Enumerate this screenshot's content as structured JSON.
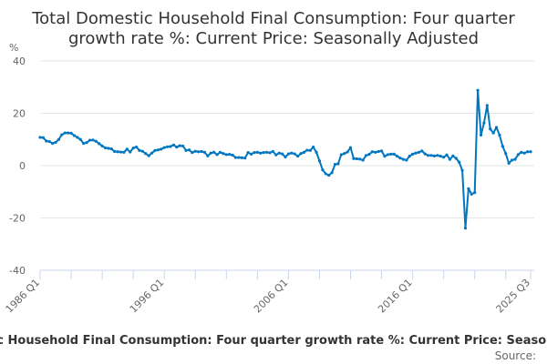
{
  "chart_data": {
    "type": "line",
    "title_lines": [
      "Total Domestic Household Final Consumption: Four quarter",
      "growth rate %: Current Price: Seasonally Adjusted"
    ],
    "ylabel": "%",
    "ylim": [
      -40,
      40
    ],
    "yticks": [
      40,
      20,
      0,
      -20,
      -40
    ],
    "grid": true,
    "x_start": "1986 Q1",
    "x_end": "2025 Q3",
    "x_tick_labels": [
      "1986 Q1",
      "1996 Q1",
      "2006 Q1",
      "2016 Q1",
      "2025 Q3"
    ],
    "series": [
      {
        "name": "Total Domestic Household Final Consumption: Four quarter growth rate %: Current Price: Seasonally Adjusted",
        "color": "#0077c0",
        "values": [
          10.8,
          10.7,
          9.4,
          9.2,
          8.5,
          8.9,
          10.0,
          11.8,
          12.5,
          12.5,
          12.4,
          11.5,
          10.8,
          10.0,
          8.5,
          8.8,
          9.7,
          9.8,
          9.3,
          8.4,
          7.5,
          6.8,
          6.6,
          6.4,
          5.4,
          5.3,
          5.2,
          5.1,
          6.3,
          5.2,
          6.7,
          7.1,
          5.8,
          5.5,
          4.6,
          3.8,
          4.8,
          5.8,
          6.0,
          6.3,
          6.9,
          7.2,
          7.3,
          7.9,
          7.1,
          7.6,
          7.5,
          5.8,
          6.0,
          5.0,
          5.5,
          5.3,
          5.4,
          5.1,
          3.7,
          4.8,
          5.1,
          4.2,
          5.1,
          4.6,
          4.2,
          4.3,
          4.0,
          3.1,
          3.1,
          3.0,
          2.9,
          5.0,
          4.4,
          5.0,
          5.1,
          4.8,
          5.0,
          5.1,
          4.9,
          5.4,
          4.1,
          4.8,
          4.5,
          3.3,
          4.5,
          4.8,
          4.5,
          3.6,
          4.6,
          5.1,
          5.9,
          5.8,
          7.1,
          5.1,
          1.8,
          -1.6,
          -3.1,
          -3.7,
          -2.7,
          0.5,
          0.7,
          4.2,
          4.6,
          5.2,
          6.9,
          2.7,
          2.6,
          2.5,
          2.1,
          3.9,
          4.3,
          5.3,
          5.1,
          5.4,
          5.6,
          3.6,
          4.2,
          4.4,
          4.4,
          3.6,
          2.9,
          2.4,
          2.1,
          3.6,
          4.4,
          4.8,
          5.1,
          5.6,
          4.5,
          3.9,
          3.9,
          3.7,
          3.9,
          3.6,
          3.2,
          4.1,
          2.4,
          3.7,
          2.8,
          1.3,
          -1.8,
          -23.9,
          -8.8,
          -10.9,
          -10.3,
          28.8,
          11.7,
          16.3,
          23.0,
          14.0,
          12.5,
          14.6,
          11.7,
          7.4,
          4.6,
          0.9,
          2.1,
          2.4,
          4.2,
          5.1,
          4.8,
          5.3,
          5.3
        ]
      }
    ],
    "legend_placement": "bottom",
    "source_label": "Source:"
  }
}
